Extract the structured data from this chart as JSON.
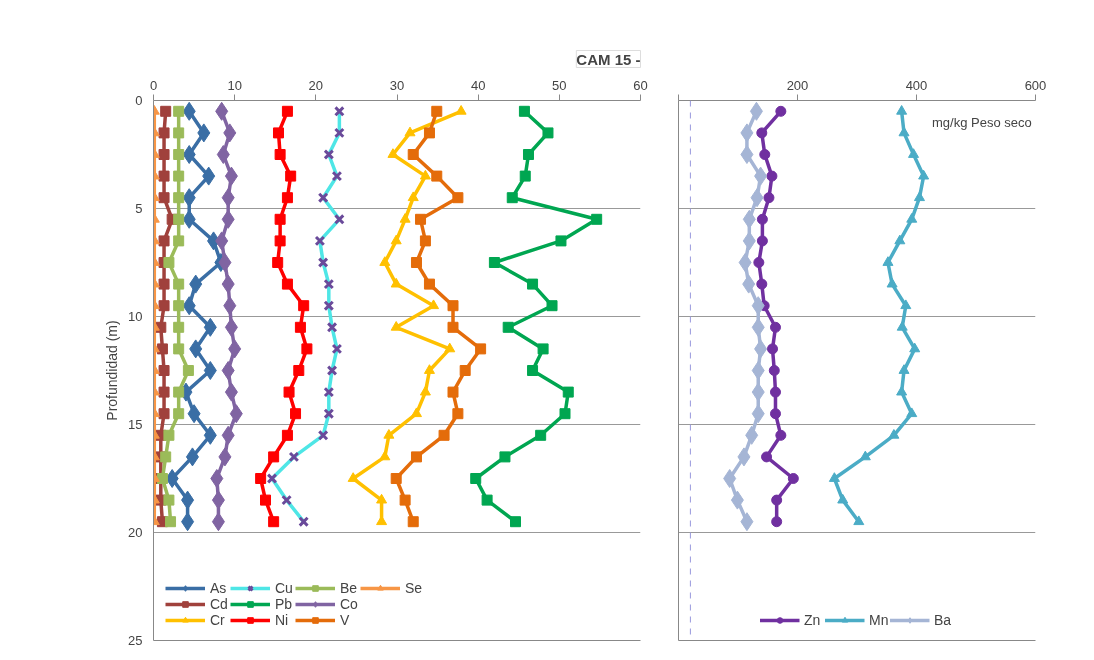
{
  "chart_data": [
    {
      "type": "line",
      "title": "CAM 15 -",
      "ylabel": "Profundidad (m)",
      "orientation": "horizontal",
      "x": [
        0.5,
        1.5,
        2.5,
        3.5,
        4.5,
        5.5,
        6.5,
        7.5,
        8.5,
        9.5,
        10.5,
        11.5,
        12.5,
        13.5,
        14.5,
        15.5,
        16.5,
        17.5,
        18.5,
        19.5
      ],
      "xlim": [
        0,
        60
      ],
      "xticks": [
        0,
        10,
        20,
        30,
        40,
        50,
        60
      ],
      "ylim": [
        25,
        0
      ],
      "yticks": [
        0,
        5,
        10,
        15,
        20,
        25
      ],
      "grid": "y",
      "legend": "bottom left",
      "series": [
        {
          "name": "As",
          "color": "#3a6ea5",
          "marker": "diamond",
          "values": [
            4.4,
            6.2,
            4.4,
            6.8,
            4.4,
            4.4,
            7.4,
            8.3,
            5.2,
            4.4,
            7.0,
            5.2,
            7.0,
            4.0,
            5.0,
            7.0,
            4.8,
            2.3,
            4.2,
            4.2
          ]
        },
        {
          "name": "Cd",
          "color": "#a0413c",
          "marker": "square",
          "values": [
            1.5,
            1.3,
            1.3,
            1.3,
            1.3,
            2.3,
            1.3,
            1.3,
            1.3,
            1.3,
            0.9,
            1.1,
            1.3,
            1.3,
            1.3,
            0.9,
            0.9,
            0.9,
            0.9,
            1.1
          ]
        },
        {
          "name": "Cr",
          "color": "#ffc000",
          "marker": "triangle",
          "values": [
            37.9,
            31.6,
            29.5,
            33.5,
            32.0,
            31.0,
            29.9,
            28.5,
            29.9,
            34.5,
            29.9,
            36.5,
            34.0,
            33.5,
            32.4,
            29.0,
            28.5,
            24.6,
            28.1,
            28.1
          ]
        },
        {
          "name": "Cu",
          "color": "#4ee6e6",
          "marker": "cross",
          "values": [
            22.9,
            22.9,
            21.6,
            22.6,
            20.9,
            22.9,
            20.5,
            20.9,
            21.6,
            21.6,
            22.0,
            22.6,
            22.0,
            21.6,
            21.6,
            20.9,
            17.3,
            14.6,
            16.4,
            18.5
          ]
        },
        {
          "name": "Pb",
          "color": "#00a651",
          "marker": "square",
          "values": [
            45.7,
            48.6,
            46.2,
            45.8,
            44.2,
            54.6,
            50.2,
            42.0,
            46.7,
            49.1,
            43.7,
            48.0,
            46.7,
            51.1,
            50.7,
            47.7,
            43.3,
            39.7,
            41.1,
            44.6
          ]
        },
        {
          "name": "Ni",
          "color": "#ff0000",
          "marker": "square",
          "values": [
            16.5,
            15.4,
            15.6,
            16.9,
            16.5,
            15.6,
            15.6,
            15.3,
            16.5,
            18.5,
            18.1,
            18.9,
            17.9,
            16.7,
            17.5,
            16.5,
            14.8,
            13.2,
            13.8,
            14.8
          ]
        },
        {
          "name": "Be",
          "color": "#9bbb59",
          "marker": "square",
          "values": [
            3.1,
            3.1,
            3.1,
            3.1,
            3.1,
            3.1,
            3.1,
            1.9,
            3.1,
            3.1,
            3.1,
            3.1,
            4.3,
            3.1,
            3.1,
            1.9,
            1.5,
            1.1,
            1.9,
            2.1
          ]
        },
        {
          "name": "Co",
          "color": "#8064a2",
          "marker": "diamond",
          "values": [
            8.4,
            9.4,
            8.6,
            9.6,
            9.2,
            9.2,
            8.4,
            8.8,
            9.2,
            9.4,
            9.6,
            10.0,
            9.2,
            9.6,
            10.2,
            9.2,
            8.8,
            7.8,
            8.0,
            8.0
          ]
        },
        {
          "name": "V",
          "color": "#e46c0a",
          "marker": "square",
          "values": [
            34.9,
            34.0,
            32.0,
            34.9,
            37.5,
            32.9,
            33.5,
            32.4,
            34.0,
            36.9,
            36.9,
            40.3,
            38.4,
            36.9,
            37.5,
            35.8,
            32.4,
            29.9,
            31.0,
            32.0
          ]
        },
        {
          "name": "Se",
          "color": "#f79646",
          "marker": "triangle",
          "values": [
            0.1,
            0.1,
            0.1,
            0.1,
            0.1,
            0.1,
            0.1,
            0.1,
            0.1,
            0.1,
            0.1,
            0.1,
            0.1,
            0.1,
            0.1,
            0.1,
            0.1,
            0.1,
            0.1,
            0.1
          ]
        }
      ]
    },
    {
      "type": "line",
      "orientation": "horizontal",
      "x": [
        0.5,
        1.5,
        2.5,
        3.5,
        4.5,
        5.5,
        6.5,
        7.5,
        8.5,
        9.5,
        10.5,
        11.5,
        12.5,
        13.5,
        14.5,
        15.5,
        16.5,
        17.5,
        18.5,
        19.5
      ],
      "xlim": [
        0,
        600
      ],
      "xticks": [
        {
          "value": 0,
          "label": null
        },
        200,
        400,
        600
      ],
      "ylim": [
        25,
        0
      ],
      "yticks": [
        {
          "value": 0,
          "label": null
        },
        {
          "value": 5,
          "label": null
        },
        {
          "value": 10,
          "label": null
        },
        {
          "value": 15,
          "label": null
        },
        {
          "value": 20,
          "label": null
        },
        {
          "value": 25,
          "label": null
        }
      ],
      "tick_labels": "x",
      "grid": "y",
      "legend": "bottom",
      "annotations": [
        "mg/kg Peso seco"
      ],
      "ref_lines": [
        {
          "axis": "x",
          "value": 20,
          "label": null,
          "color": "#9999dd",
          "line_style": "dashed"
        }
      ],
      "series": [
        {
          "name": "Zn",
          "color": "#7030a0",
          "marker": "circle",
          "values": [
            172,
            140,
            145,
            157,
            152,
            141,
            141,
            135,
            140,
            144,
            163,
            158,
            161,
            163,
            163,
            172,
            148,
            193,
            165,
            165
          ]
        },
        {
          "name": "Mn",
          "color": "#4bacc6",
          "marker": "triangle",
          "values": [
            375,
            379,
            395,
            412,
            405,
            392,
            372,
            352,
            359,
            382,
            376,
            397,
            379,
            375,
            392,
            362,
            314,
            262,
            276,
            303
          ]
        },
        {
          "name": "Ba",
          "color": "#a5b5d5",
          "marker": "diamond",
          "values": [
            131,
            115,
            115,
            138,
            132,
            119,
            119,
            112,
            118,
            134,
            134,
            138,
            134,
            134,
            134,
            123,
            110,
            86,
            99,
            115
          ]
        }
      ]
    }
  ]
}
